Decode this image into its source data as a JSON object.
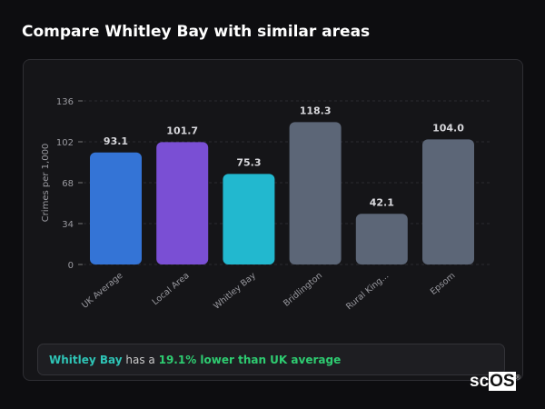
{
  "header": {
    "title": "Compare Whitley Bay with similar areas"
  },
  "chart_data": {
    "type": "bar",
    "ylabel": "Crimes per 1,000",
    "ylim": [
      0,
      136
    ],
    "yticks": [
      0,
      34,
      68,
      102,
      136
    ],
    "grid": true,
    "categories": [
      "UK Average",
      "Local Area",
      "Whitley Bay",
      "Bridlington",
      "Rural King...",
      "Epsom"
    ],
    "values": [
      93.1,
      101.7,
      75.3,
      118.3,
      42.1,
      104.0
    ],
    "value_labels": [
      "93.1",
      "101.7",
      "75.3",
      "118.3",
      "42.1",
      "104.0"
    ],
    "colors": [
      "#3474d6",
      "#7a4fd4",
      "#22b8cf",
      "#5c6677",
      "#5c6677",
      "#5c6677"
    ]
  },
  "summary": {
    "area": "Whitley Bay",
    "middle": " has a ",
    "highlight": "19.1% lower than UK average"
  },
  "logo": {
    "text_a": "sc",
    "text_b": "OS"
  }
}
